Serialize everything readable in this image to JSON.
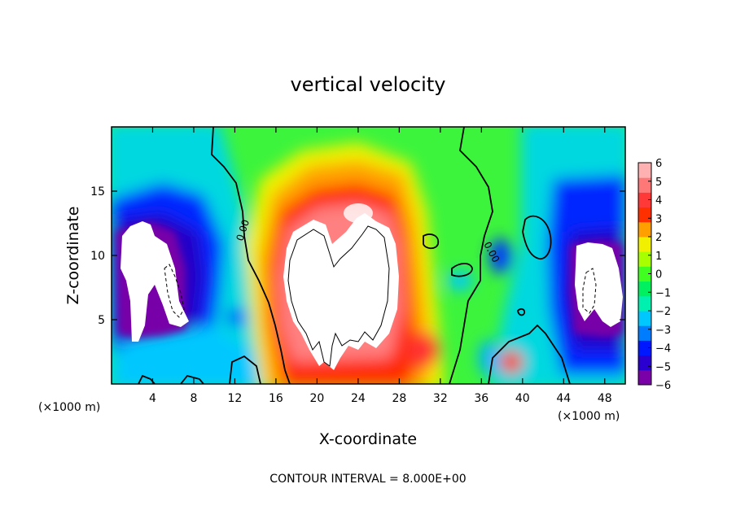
{
  "chart_data": {
    "type": "heatmap",
    "title": "vertical velocity",
    "xlabel": "X-coordinate",
    "ylabel": "Z-coordinate",
    "x_unit_label": "(×1000 m)",
    "x_unit_label_right": "(×1000 m)",
    "xlim": [
      0,
      50
    ],
    "ylim": [
      0,
      20
    ],
    "x_ticks": [
      4,
      8,
      12,
      16,
      20,
      24,
      28,
      32,
      36,
      40,
      44,
      48
    ],
    "y_ticks": [
      5,
      10,
      15
    ],
    "colorbar": {
      "min": -6,
      "max": 6,
      "tick_values": [
        6,
        5,
        4,
        3,
        2,
        1,
        0,
        -1,
        -2,
        -3,
        -4,
        -5,
        -6
      ],
      "tick_labels": [
        "6",
        "5",
        "4",
        "3",
        "2",
        "1",
        "0",
        "−1",
        "−2",
        "−3",
        "−4",
        "−5",
        "−6"
      ],
      "colors": [
        "#7a00a8",
        "#2a00d0",
        "#0018ff",
        "#007cff",
        "#00c8ff",
        "#00f0b0",
        "#00f060",
        "#40ff20",
        "#a8ff00",
        "#f0f000",
        "#ffa000",
        "#ff3000",
        "#ff3838",
        "#ff7878",
        "#ffb0b0"
      ]
    },
    "contour_labels": [
      {
        "text": "0.00",
        "x": 12.6,
        "z": 11.5
      },
      {
        "text": "0.00",
        "x": 36.6,
        "z": 10.0
      }
    ],
    "features": [
      {
        "kind": "updraft_core",
        "x_range": [
          16.5,
          28
        ],
        "z_range": [
          1,
          13
        ],
        "level": "above 6"
      },
      {
        "kind": "downdraft_core",
        "x_range": [
          1,
          8
        ],
        "z_range": [
          3,
          12.5
        ],
        "level": "below -6"
      },
      {
        "kind": "downdraft_core",
        "x_range": [
          45,
          49.5
        ],
        "z_range": [
          4,
          11
        ],
        "level": "below -6"
      }
    ],
    "footer": "CONTOUR INTERVAL = 8.000E+00"
  }
}
